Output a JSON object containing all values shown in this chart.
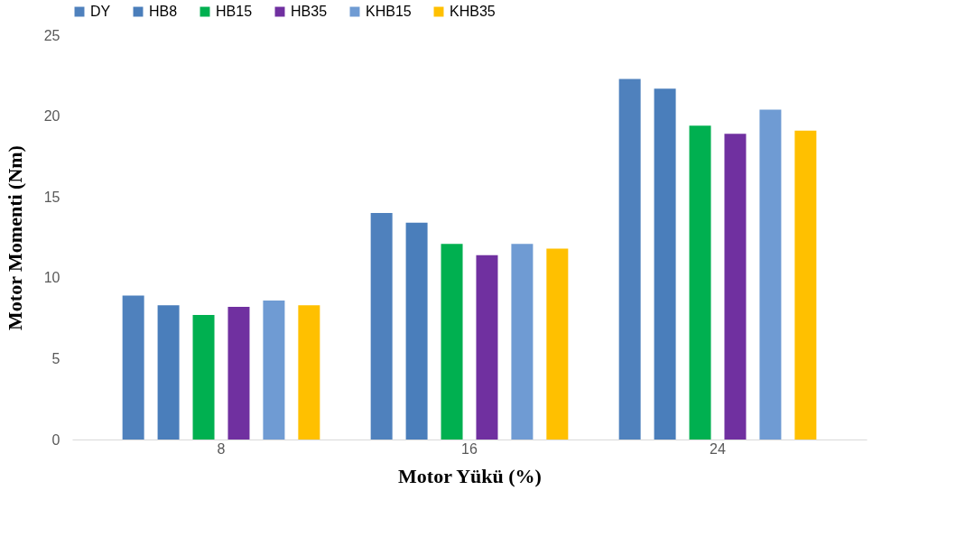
{
  "chart_data": {
    "type": "bar",
    "xlabel": "Motor Yükü (%)",
    "ylabel": "Motor Momenti (Nm)",
    "categories": [
      "8",
      "16",
      "24"
    ],
    "series": [
      {
        "name": "DY",
        "color": "#4f81bd",
        "values": [
          8.9,
          14.0,
          22.3
        ]
      },
      {
        "name": "HB8",
        "color": "#4a7ebb",
        "values": [
          8.3,
          13.4,
          21.7
        ]
      },
      {
        "name": "HB15",
        "color": "#00b050",
        "values": [
          7.7,
          12.1,
          19.4
        ]
      },
      {
        "name": "HB35",
        "color": "#7030a0",
        "values": [
          8.2,
          11.4,
          18.9
        ]
      },
      {
        "name": "KHB15",
        "color": "#6f9bd3",
        "values": [
          8.6,
          12.1,
          20.4
        ]
      },
      {
        "name": "KHB35",
        "color": "#ffc000",
        "values": [
          8.3,
          11.8,
          19.1
        ]
      }
    ],
    "ylim": [
      0,
      25
    ],
    "yticks": [
      0,
      5,
      10,
      15,
      20,
      25
    ],
    "grid": false,
    "legend": "top"
  }
}
